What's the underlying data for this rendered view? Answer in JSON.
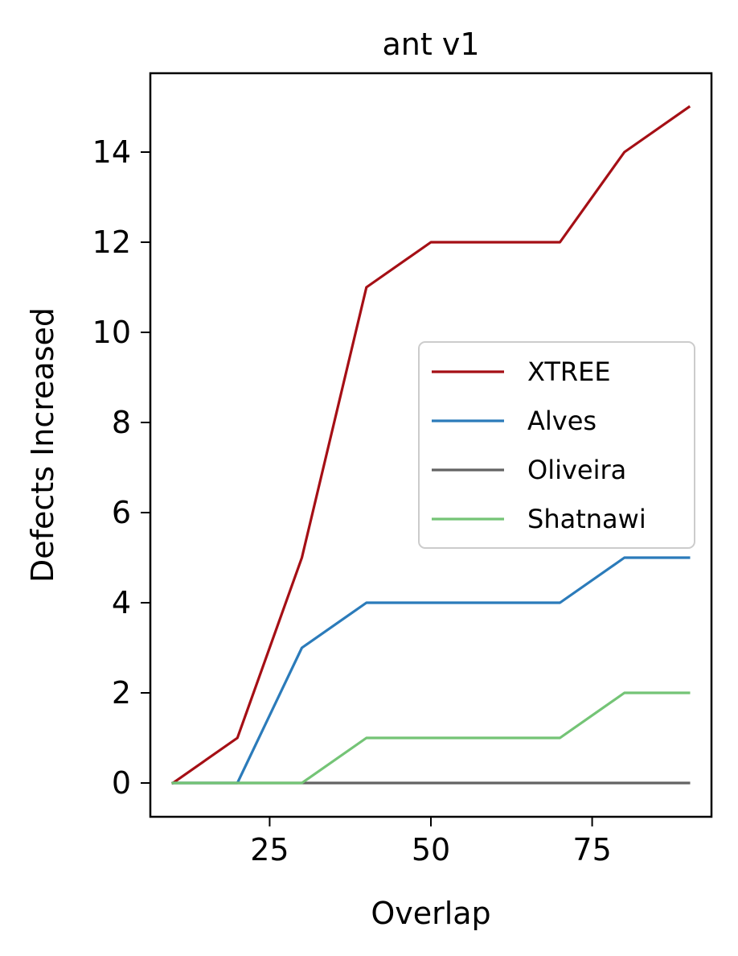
{
  "chart_data": {
    "type": "line",
    "title": "ant v1",
    "xlabel": "Overlap",
    "ylabel": "Defects Increased",
    "x": [
      10,
      20,
      30,
      40,
      50,
      60,
      70,
      80,
      90
    ],
    "xlim": [
      6.5,
      93.5
    ],
    "ylim": [
      -0.75,
      15.75
    ],
    "xticks": [
      25,
      50,
      75
    ],
    "yticks": [
      0,
      2,
      4,
      6,
      8,
      10,
      12,
      14
    ],
    "grid": false,
    "legend_position": "center-right",
    "series": [
      {
        "name": "XTREE",
        "color": "#a50f15",
        "values": [
          0,
          1,
          5,
          11,
          12,
          12,
          12,
          14,
          15
        ]
      },
      {
        "name": "Alves",
        "color": "#2b7bba",
        "values": [
          0,
          0,
          3,
          4,
          4,
          4,
          4,
          5,
          5
        ]
      },
      {
        "name": "Oliveira",
        "color": "#636363",
        "values": [
          0,
          0,
          0,
          0,
          0,
          0,
          0,
          0,
          0
        ]
      },
      {
        "name": "Shatnawi",
        "color": "#74c476",
        "values": [
          0,
          0,
          0,
          1,
          1,
          1,
          1,
          2,
          2
        ]
      }
    ]
  }
}
